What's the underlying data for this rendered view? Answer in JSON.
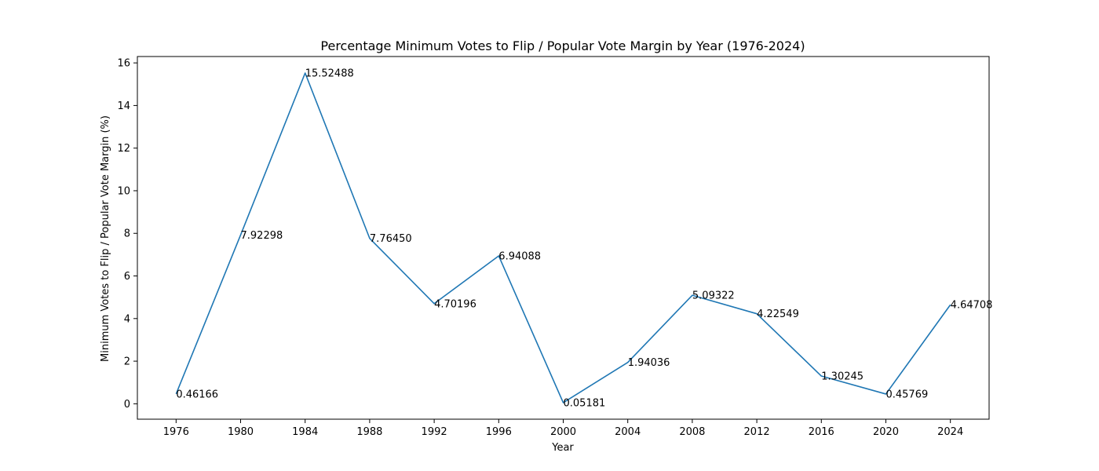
{
  "chart_data": {
    "type": "line",
    "title": "Percentage Minimum Votes to Flip / Popular Vote Margin by Year (1976-2024)",
    "xlabel": "Year",
    "ylabel": "Minimum Votes to Flip / Popular Vote Margin (%)",
    "x": [
      1976,
      1980,
      1984,
      1988,
      1992,
      1996,
      2000,
      2004,
      2008,
      2012,
      2016,
      2020,
      2024
    ],
    "values": [
      0.46166,
      7.92298,
      15.52488,
      7.7645,
      4.70196,
      6.94088,
      0.05181,
      1.94036,
      5.09322,
      4.22549,
      1.30245,
      0.45769,
      4.64708
    ],
    "data_labels": [
      "0.46166",
      "7.92298",
      "15.52488",
      "7.76450",
      "4.70196",
      "6.94088",
      "0.05181",
      "1.94036",
      "5.09322",
      "4.22549",
      "1.30245",
      "0.45769",
      "4.64708"
    ],
    "x_ticks": [
      "1976",
      "1980",
      "1984",
      "1988",
      "1992",
      "1996",
      "2000",
      "2004",
      "2008",
      "2012",
      "2016",
      "2020",
      "2024"
    ],
    "y_ticks": [
      0,
      2,
      4,
      6,
      8,
      10,
      12,
      14,
      16
    ],
    "y_tick_labels": [
      "0",
      "2",
      "4",
      "6",
      "8",
      "10",
      "12",
      "14",
      "16"
    ],
    "xlim": [
      1973.6,
      2026.4
    ],
    "ylim": [
      -0.7234,
      16.2995
    ],
    "grid": false,
    "legend": "none",
    "line_color": "#1f77b4"
  }
}
